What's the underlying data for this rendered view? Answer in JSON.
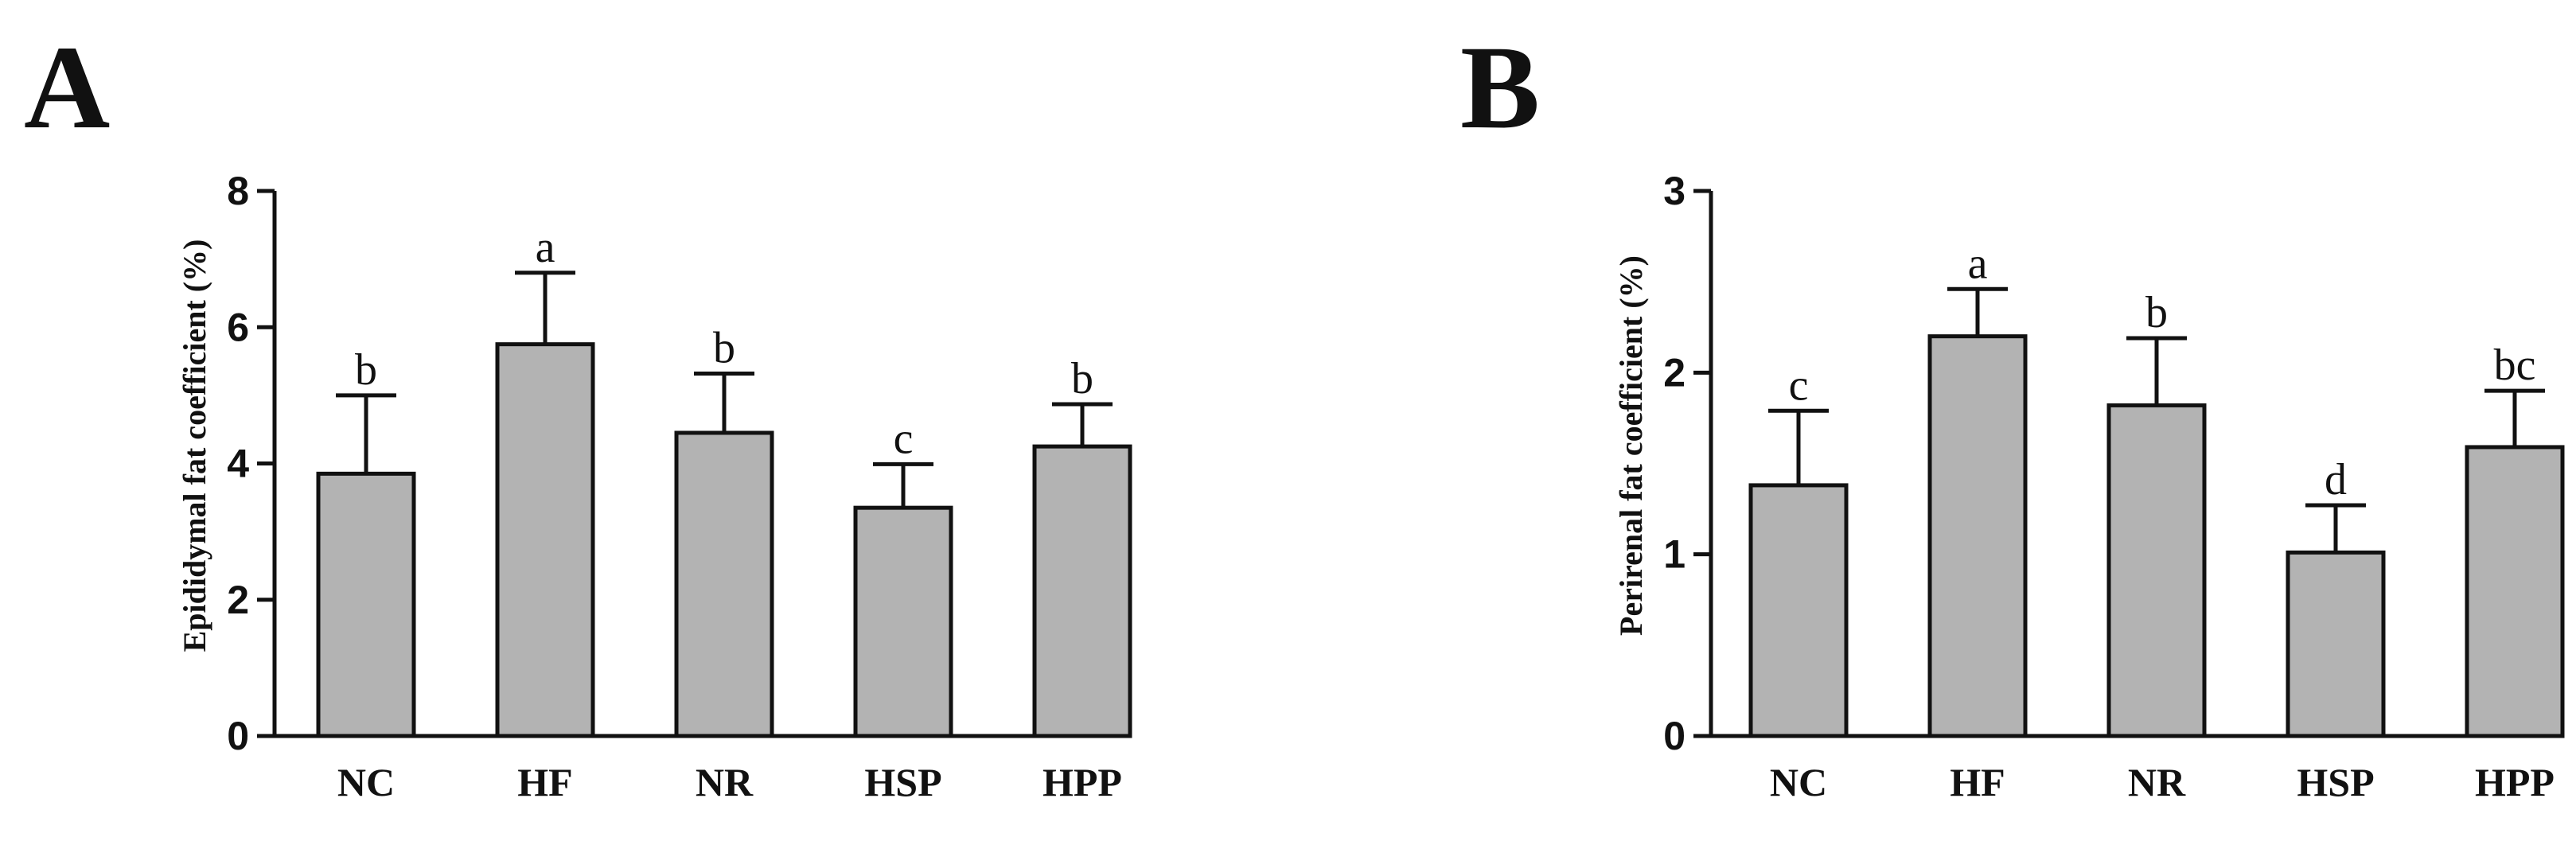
{
  "chart_data": [
    {
      "type": "bar",
      "panel_label": "A",
      "title": "",
      "xlabel": "",
      "ylabel": "Epididymal fat coefficient (%)",
      "ylim": [
        0,
        8
      ],
      "yticks": [
        "0",
        "2",
        "4",
        "6",
        "8"
      ],
      "categories": [
        "NC",
        "HF",
        "NR",
        "HSP",
        "HPP"
      ],
      "values": [
        3.85,
        5.75,
        4.45,
        3.35,
        4.25
      ],
      "errors": [
        1.15,
        1.05,
        0.87,
        0.64,
        0.62
      ],
      "significance": [
        "b",
        "a",
        "b",
        "c",
        "b"
      ],
      "bar_color": "#b3b3b3",
      "grid": false
    },
    {
      "type": "bar",
      "panel_label": "B",
      "title": "",
      "xlabel": "",
      "ylabel": "Perirenal fat coefficient (%)",
      "ylim": [
        0,
        3
      ],
      "yticks": [
        "0",
        "1",
        "2",
        "3"
      ],
      "categories": [
        "NC",
        "HF",
        "NR",
        "HSP",
        "HPP"
      ],
      "values": [
        1.38,
        2.2,
        1.82,
        1.01,
        1.59
      ],
      "errors": [
        0.41,
        0.26,
        0.37,
        0.26,
        0.31
      ],
      "significance": [
        "c",
        "a",
        "b",
        "d",
        "bc"
      ],
      "bar_color": "#b3b3b3",
      "grid": false
    }
  ]
}
